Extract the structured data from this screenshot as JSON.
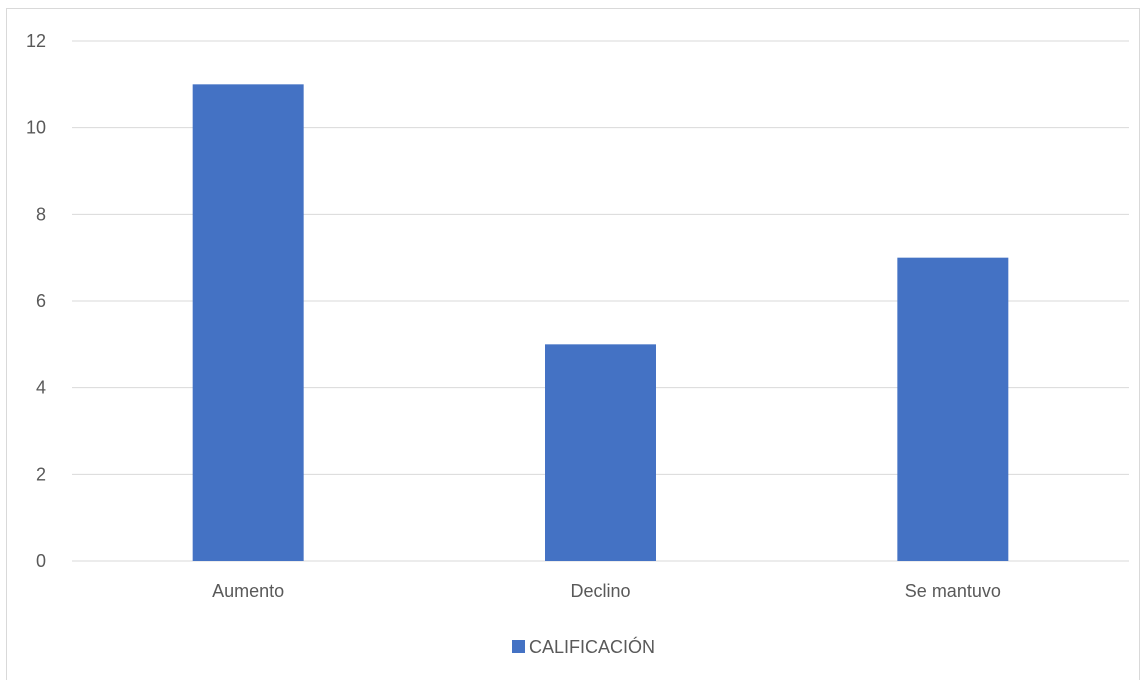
{
  "chart_data": {
    "type": "bar",
    "categories": [
      "Aumento",
      "Declino",
      "Se mantuvo"
    ],
    "series": [
      {
        "name": "CALIFICACIÓN",
        "values": [
          11,
          5,
          7
        ],
        "color": "#4472c4"
      }
    ],
    "ylim": [
      0,
      12
    ],
    "yticks": [
      0,
      2,
      4,
      6,
      8,
      10,
      12
    ],
    "grid": true,
    "legend": "bottom",
    "title": "",
    "xlabel": "",
    "ylabel": ""
  }
}
